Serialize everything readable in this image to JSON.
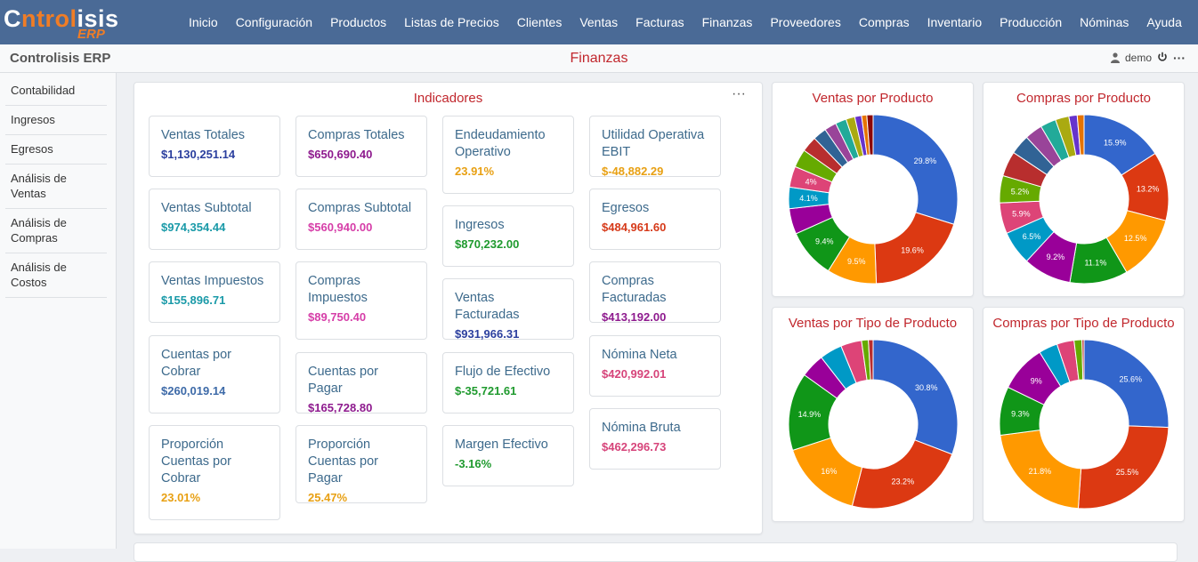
{
  "logo": {
    "part1": "C",
    "part2": "ntrol",
    "part3": "isis",
    "sub": "ERP"
  },
  "menu": [
    "Inicio",
    "Configuración",
    "Productos",
    "Listas de Precios",
    "Clientes",
    "Ventas",
    "Facturas",
    "Finanzas",
    "Proveedores",
    "Compras",
    "Inventario",
    "Producción",
    "Nóminas",
    "Ayuda"
  ],
  "subbar": {
    "brand": "Controlisis ERP",
    "title": "Finanzas",
    "user": "demo",
    "more": "···"
  },
  "sidebar": [
    "Contabilidad",
    "Ingresos",
    "Egresos",
    "Análisis de Ventas",
    "Análisis de Compras",
    "Análisis de Costos"
  ],
  "indicators": {
    "title": "Indicadores",
    "more": "···",
    "columns": [
      [
        {
          "label": "Ventas Totales",
          "value": "$1,130,251.14",
          "color": "#2b3f9e"
        },
        {
          "label": "Ventas Subtotal",
          "value": "$974,354.44",
          "color": "#1a9aa8"
        },
        {
          "label": "Ventas Impuestos",
          "value": "$155,896.71",
          "color": "#1a9aa8"
        },
        {
          "label": "Cuentas por Cobrar",
          "value": "$260,019.14",
          "color": "#3d6aa8"
        },
        {
          "label": "Proporción Cuentas por Cobrar",
          "value": "23.01%",
          "color": "#e8a013"
        }
      ],
      [
        {
          "label": "Compras Totales",
          "value": "$650,690.40",
          "color": "#8e1a8e"
        },
        {
          "label": "Compras Subtotal",
          "value": "$560,940.00",
          "color": "#d63ea8"
        },
        {
          "label": "Compras Impuestos",
          "value": "$89,750.40",
          "color": "#d63ea8"
        },
        {
          "label": "Cuentas por Pagar",
          "value": "$165,728.80",
          "color": "#8e1a8e"
        },
        {
          "label": "Proporción Cuentas por Pagar",
          "value": "25.47%",
          "color": "#e8a013"
        }
      ],
      [
        {
          "label": "Endeudamiento Operativo",
          "value": "23.91%",
          "color": "#e8a013"
        },
        {
          "label": "Ingresos",
          "value": "$870,232.00",
          "color": "#1f9a2e"
        },
        {
          "label": "Ventas Facturadas",
          "value": "$931,966.31",
          "color": "#2b3f9e"
        },
        {
          "label": "Flujo de Efectivo",
          "value": "$-35,721.61",
          "color": "#1f9a2e"
        },
        {
          "label": "Margen Efectivo",
          "value": "-3.16%",
          "color": "#1f9a2e"
        }
      ],
      [
        {
          "label": "Utilidad Operativa EBIT",
          "value": "$-48,882.29",
          "color": "#e8a013"
        },
        {
          "label": "Egresos",
          "value": "$484,961.60",
          "color": "#d63a1a"
        },
        {
          "label": "Compras Facturadas",
          "value": "$413,192.00",
          "color": "#8e1a8e"
        },
        {
          "label": "Nómina Neta",
          "value": "$420,992.01",
          "color": "#d6447a"
        },
        {
          "label": "Nómina Bruta",
          "value": "$462,296.73",
          "color": "#d6447a"
        }
      ]
    ]
  },
  "chart_data": [
    {
      "type": "pie",
      "title": "Ventas por Producto",
      "values": [
        29.8,
        19.6,
        9.5,
        9.4,
        4.9,
        4.1,
        4.0,
        3.5,
        3.0,
        2.6,
        2.3,
        2.1,
        1.7,
        1.3,
        1.0,
        1.2
      ],
      "labels": [
        "29.8%",
        "19.6%",
        "9.5%",
        "9.4%",
        "",
        "4.1%",
        "4%",
        "",
        "",
        "",
        "",
        "",
        "",
        "",
        "",
        ""
      ]
    },
    {
      "type": "pie",
      "title": "Compras por Producto",
      "values": [
        15.9,
        13.2,
        12.5,
        11.1,
        9.2,
        6.5,
        5.9,
        5.2,
        4.8,
        3.8,
        3.4,
        3.0,
        2.6,
        1.6,
        1.3
      ],
      "labels": [
        "15.9%",
        "13.2%",
        "12.5%",
        "11.1%",
        "9.2%",
        "6.5%",
        "5.9%",
        "5.2%",
        "",
        "",
        "",
        "",
        "",
        "",
        ""
      ]
    },
    {
      "type": "pie",
      "title": "Ventas por Tipo de Producto",
      "values": [
        30.8,
        23.2,
        16,
        14.9,
        4.6,
        4.3,
        4.0,
        1.3,
        0.9
      ],
      "labels": [
        "30.8%",
        "23.2%",
        "16%",
        "14.9%",
        "",
        "",
        "",
        "",
        ""
      ]
    },
    {
      "type": "pie",
      "title": "Compras por Tipo de Producto",
      "values": [
        25.6,
        25.5,
        21.8,
        9.3,
        9,
        3.6,
        3.3,
        1.5,
        0.4
      ],
      "labels": [
        "25.6%",
        "25.5%",
        "21.8%",
        "9.3%",
        "9%",
        "",
        "",
        "",
        ""
      ]
    }
  ],
  "palette": [
    "#3366cc",
    "#dc3912",
    "#ff9900",
    "#109618",
    "#990099",
    "#0099c6",
    "#dd4477",
    "#66aa00",
    "#b82e2e",
    "#316395",
    "#994499",
    "#22aa99",
    "#aaaa11",
    "#6633cc",
    "#e67300",
    "#8b0707"
  ]
}
